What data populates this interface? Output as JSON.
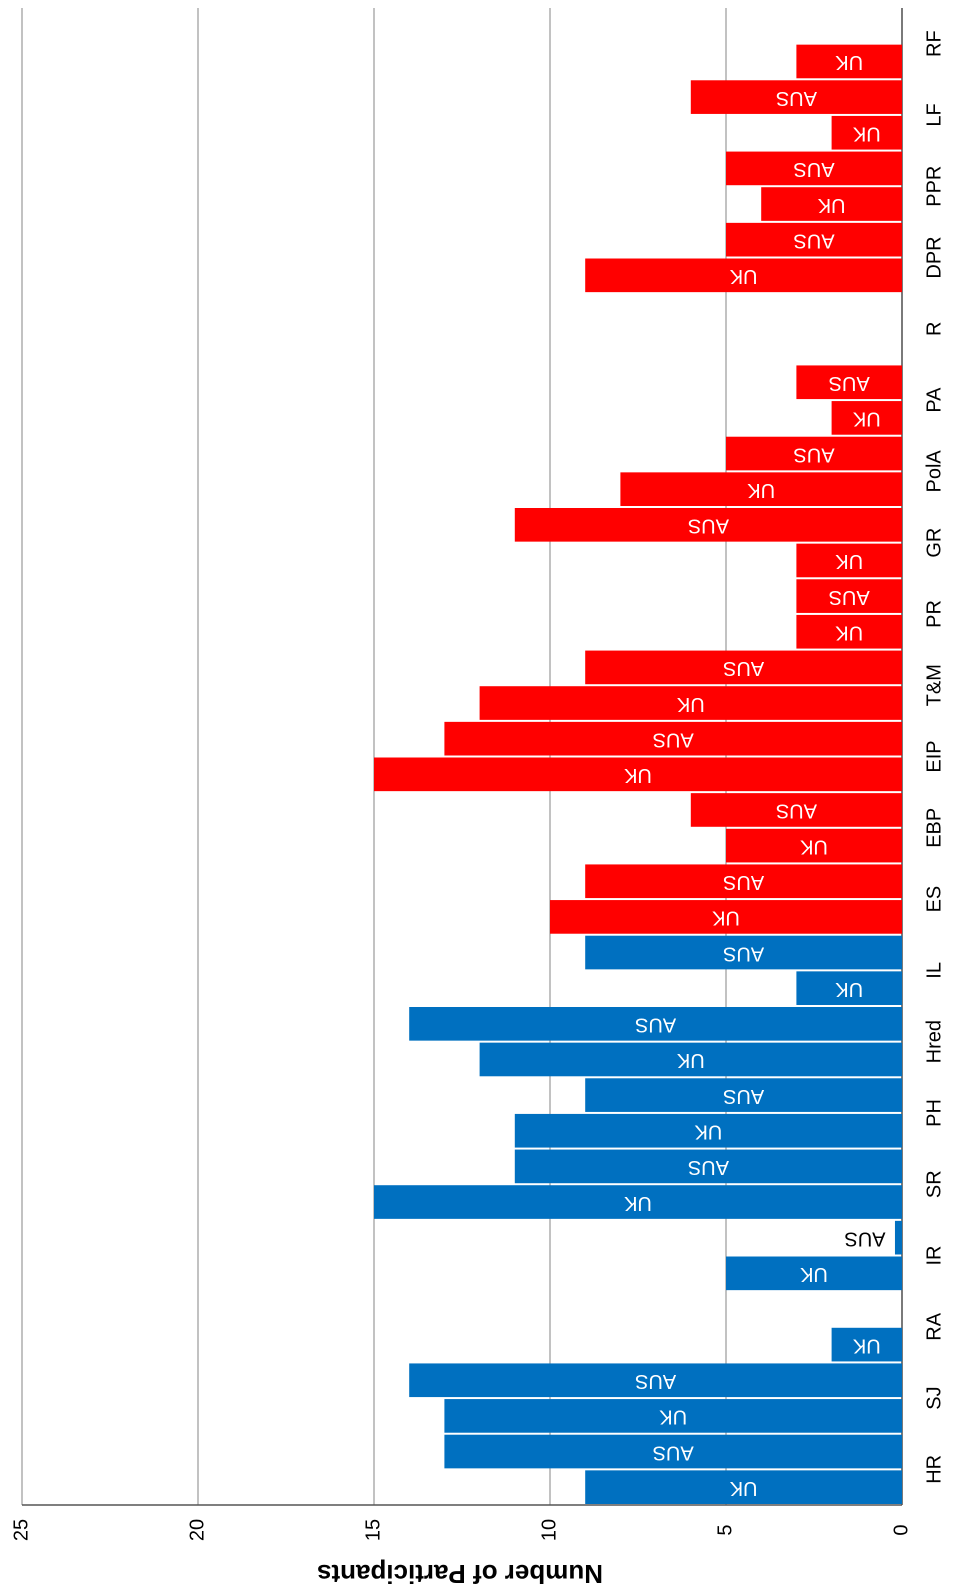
{
  "chart_data": {
    "type": "bar",
    "orientation": "rotated",
    "y_label": "Number of Participants",
    "categories": [
      "HR",
      "SJ",
      "RA",
      "IR",
      "SR",
      "PH",
      "Hred",
      "IL",
      "ES",
      "EBP",
      "EIP",
      "T&M",
      "PR",
      "GR",
      "PolA",
      "PA",
      "R",
      "DPR",
      "PPR",
      "LF",
      "RF"
    ],
    "category_colors": [
      "#0070c0",
      "#0070c0",
      "#0070c0",
      "#0070c0",
      "#0070c0",
      "#0070c0",
      "#0070c0",
      "#0070c0",
      "#ff0000",
      "#ff0000",
      "#ff0000",
      "#ff0000",
      "#ff0000",
      "#ff0000",
      "#ff0000",
      "#ff0000",
      "#ff0000",
      "#ff0000",
      "#ff0000",
      "#ff0000",
      "#ff0000"
    ],
    "series": [
      {
        "name": "UK",
        "values": [
          9,
          13,
          2,
          5,
          15,
          11,
          12,
          3,
          10,
          5,
          15,
          12,
          3,
          3,
          8,
          2,
          null,
          9,
          4,
          2,
          3
        ]
      },
      {
        "name": "AUS",
        "values": [
          13,
          14,
          null,
          0.2,
          11,
          9,
          14,
          9,
          9,
          6,
          13,
          9,
          3,
          11,
          5,
          3,
          null,
          5,
          5,
          6,
          null
        ]
      }
    ],
    "ylim": [
      0,
      25
    ],
    "yticks": [
      0,
      5,
      10,
      15,
      20,
      25
    ],
    "grid": true
  }
}
